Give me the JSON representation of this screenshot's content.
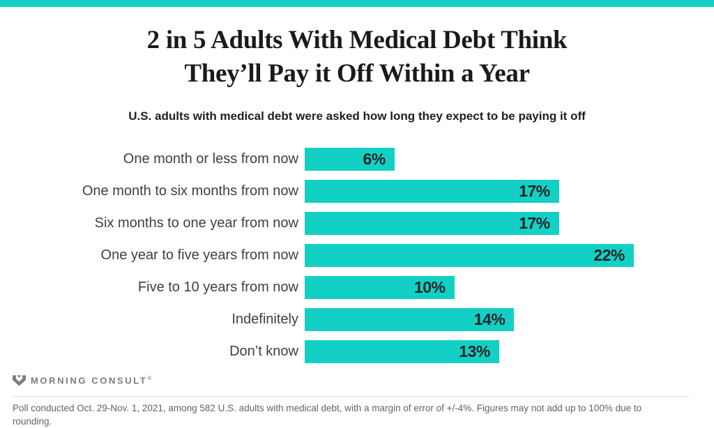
{
  "page": {
    "background": "#ffffff",
    "accent_color": "#12d1c4"
  },
  "header": {
    "title_line1": "2 in 5 Adults With Medical Debt Think",
    "title_line2": "They’ll Pay it Off Within a Year",
    "subtitle": "U.S. adults with medical debt were asked how long they expect to be paying it off"
  },
  "chart_data": {
    "type": "bar",
    "orientation": "horizontal",
    "title": "2 in 5 Adults With Medical Debt Think They’ll Pay it Off Within a Year",
    "subtitle": "U.S. adults with medical debt were asked how long they expect to be paying it off",
    "categories": [
      "One month or less from now",
      "One month to six months from now",
      "Six months to one year from now",
      "One year to five years from now",
      "Five to 10 years from now",
      "Indefinitely",
      "Don’t know"
    ],
    "values": [
      6,
      17,
      17,
      22,
      10,
      14,
      13
    ],
    "value_labels": [
      "6%",
      "17%",
      "17%",
      "22%",
      "10%",
      "14%",
      "13%"
    ],
    "unit": "percent",
    "xlim": [
      0,
      22
    ],
    "grid": false,
    "legend": "none",
    "bar_color": "#12d1c4",
    "value_label_position": "inside-right"
  },
  "footer": {
    "logo_text": "MORNING CONSULT",
    "trademark": "®",
    "footnote": "Poll conducted Oct. 29-Nov. 1, 2021, among 582 U.S. adults with medical debt, with a margin of error of +/-4%. Figures may not add up to 100% due to rounding."
  }
}
